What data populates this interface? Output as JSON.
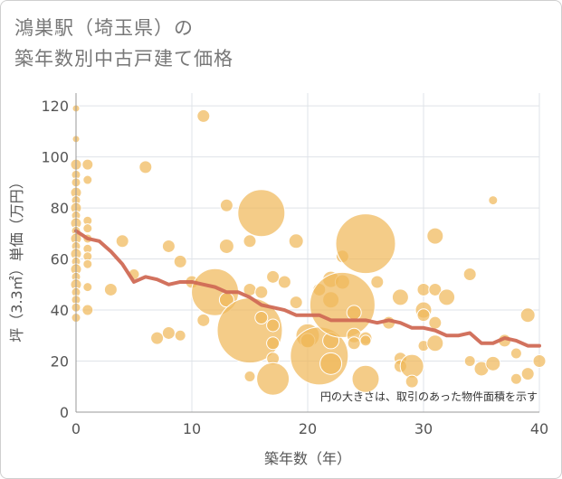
{
  "title_line1": "鴻巣駅（埼玉県）の",
  "title_line2": "築年数別中古戸建て価格",
  "chart_data": {
    "type": "scatter",
    "xlabel": "築年数（年）",
    "ylabel": "坪（3.3㎡）単価（万円）",
    "xlim": [
      0,
      40
    ],
    "ylim": [
      0,
      125
    ],
    "xticks": [
      0,
      10,
      20,
      30,
      40
    ],
    "yticks": [
      0,
      20,
      40,
      60,
      80,
      100,
      120
    ],
    "note": "円の大きさは、取引のあった物件面積を示す",
    "colors": {
      "bubble": "#f0b85a",
      "line": "#d06a55",
      "grid": "#dfe3e8",
      "axis": "#999999"
    },
    "bubbles": [
      {
        "x": 0,
        "y": 119,
        "r": 4
      },
      {
        "x": 0,
        "y": 107,
        "r": 4
      },
      {
        "x": 0,
        "y": 97,
        "r": 6
      },
      {
        "x": 0,
        "y": 93,
        "r": 5
      },
      {
        "x": 0,
        "y": 90,
        "r": 5
      },
      {
        "x": 0,
        "y": 86,
        "r": 6
      },
      {
        "x": 0,
        "y": 83,
        "r": 5
      },
      {
        "x": 0,
        "y": 80,
        "r": 6
      },
      {
        "x": 0,
        "y": 77,
        "r": 5
      },
      {
        "x": 0,
        "y": 74,
        "r": 6
      },
      {
        "x": 0,
        "y": 71,
        "r": 5
      },
      {
        "x": 0,
        "y": 68,
        "r": 6
      },
      {
        "x": 0,
        "y": 65,
        "r": 5
      },
      {
        "x": 0,
        "y": 62,
        "r": 6
      },
      {
        "x": 0,
        "y": 59,
        "r": 5
      },
      {
        "x": 0,
        "y": 56,
        "r": 6
      },
      {
        "x": 0,
        "y": 53,
        "r": 5
      },
      {
        "x": 0,
        "y": 50,
        "r": 6
      },
      {
        "x": 0,
        "y": 47,
        "r": 5
      },
      {
        "x": 0,
        "y": 44,
        "r": 5
      },
      {
        "x": 0,
        "y": 41,
        "r": 5
      },
      {
        "x": 0,
        "y": 37,
        "r": 5
      },
      {
        "x": 1,
        "y": 97,
        "r": 6
      },
      {
        "x": 1,
        "y": 91,
        "r": 5
      },
      {
        "x": 1,
        "y": 75,
        "r": 5
      },
      {
        "x": 1,
        "y": 72,
        "r": 5
      },
      {
        "x": 1,
        "y": 68,
        "r": 5
      },
      {
        "x": 1,
        "y": 64,
        "r": 5
      },
      {
        "x": 1,
        "y": 61,
        "r": 5
      },
      {
        "x": 1,
        "y": 58,
        "r": 5
      },
      {
        "x": 1,
        "y": 49,
        "r": 5
      },
      {
        "x": 1,
        "y": 40,
        "r": 6
      },
      {
        "x": 3,
        "y": 48,
        "r": 7
      },
      {
        "x": 4,
        "y": 67,
        "r": 7
      },
      {
        "x": 5,
        "y": 54,
        "r": 6
      },
      {
        "x": 6,
        "y": 96,
        "r": 7
      },
      {
        "x": 7,
        "y": 29,
        "r": 7
      },
      {
        "x": 8,
        "y": 65,
        "r": 7
      },
      {
        "x": 8,
        "y": 31,
        "r": 7
      },
      {
        "x": 9,
        "y": 59,
        "r": 7
      },
      {
        "x": 9,
        "y": 30,
        "r": 6
      },
      {
        "x": 10,
        "y": 51,
        "r": 7
      },
      {
        "x": 11,
        "y": 116,
        "r": 7
      },
      {
        "x": 11,
        "y": 36,
        "r": 7
      },
      {
        "x": 12,
        "y": 47,
        "r": 26
      },
      {
        "x": 13,
        "y": 81,
        "r": 7
      },
      {
        "x": 13,
        "y": 65,
        "r": 8
      },
      {
        "x": 13,
        "y": 44,
        "r": 8
      },
      {
        "x": 15,
        "y": 67,
        "r": 7
      },
      {
        "x": 15,
        "y": 48,
        "r": 7
      },
      {
        "x": 15,
        "y": 32,
        "r": 36
      },
      {
        "x": 15,
        "y": 14,
        "r": 6
      },
      {
        "x": 16,
        "y": 78,
        "r": 26
      },
      {
        "x": 16,
        "y": 47,
        "r": 7
      },
      {
        "x": 16,
        "y": 37,
        "r": 7
      },
      {
        "x": 17,
        "y": 53,
        "r": 7
      },
      {
        "x": 17,
        "y": 34,
        "r": 7
      },
      {
        "x": 17,
        "y": 27,
        "r": 7
      },
      {
        "x": 17,
        "y": 21,
        "r": 7
      },
      {
        "x": 17,
        "y": 13,
        "r": 18
      },
      {
        "x": 18,
        "y": 51,
        "r": 7
      },
      {
        "x": 19,
        "y": 67,
        "r": 8
      },
      {
        "x": 19,
        "y": 43,
        "r": 7
      },
      {
        "x": 20,
        "y": 30,
        "r": 13
      },
      {
        "x": 20,
        "y": 28,
        "r": 8
      },
      {
        "x": 21,
        "y": 48,
        "r": 7
      },
      {
        "x": 21,
        "y": 22,
        "r": 32
      },
      {
        "x": 22,
        "y": 52,
        "r": 9
      },
      {
        "x": 22,
        "y": 44,
        "r": 9
      },
      {
        "x": 22,
        "y": 28,
        "r": 9
      },
      {
        "x": 22,
        "y": 19,
        "r": 12
      },
      {
        "x": 23,
        "y": 61,
        "r": 7
      },
      {
        "x": 23,
        "y": 51,
        "r": 8
      },
      {
        "x": 23,
        "y": 42,
        "r": 36
      },
      {
        "x": 24,
        "y": 39,
        "r": 8
      },
      {
        "x": 24,
        "y": 30,
        "r": 8
      },
      {
        "x": 24,
        "y": 27,
        "r": 7
      },
      {
        "x": 25,
        "y": 66,
        "r": 33
      },
      {
        "x": 25,
        "y": 29,
        "r": 7
      },
      {
        "x": 25,
        "y": 28,
        "r": 6
      },
      {
        "x": 25,
        "y": 13,
        "r": 15
      },
      {
        "x": 26,
        "y": 51,
        "r": 7
      },
      {
        "x": 27,
        "y": 35,
        "r": 7
      },
      {
        "x": 28,
        "y": 45,
        "r": 9
      },
      {
        "x": 28,
        "y": 21,
        "r": 7
      },
      {
        "x": 28,
        "y": 18,
        "r": 7
      },
      {
        "x": 29,
        "y": 18,
        "r": 13
      },
      {
        "x": 29,
        "y": 12,
        "r": 7
      },
      {
        "x": 30,
        "y": 48,
        "r": 7
      },
      {
        "x": 30,
        "y": 40,
        "r": 9
      },
      {
        "x": 30,
        "y": 38,
        "r": 7
      },
      {
        "x": 30,
        "y": 26,
        "r": 6
      },
      {
        "x": 31,
        "y": 69,
        "r": 9
      },
      {
        "x": 31,
        "y": 48,
        "r": 7
      },
      {
        "x": 31,
        "y": 35,
        "r": 7
      },
      {
        "x": 31,
        "y": 27,
        "r": 9
      },
      {
        "x": 32,
        "y": 45,
        "r": 9
      },
      {
        "x": 34,
        "y": 54,
        "r": 7
      },
      {
        "x": 34,
        "y": 20,
        "r": 6
      },
      {
        "x": 35,
        "y": 17,
        "r": 8
      },
      {
        "x": 36,
        "y": 83,
        "r": 5
      },
      {
        "x": 36,
        "y": 19,
        "r": 8
      },
      {
        "x": 37,
        "y": 28,
        "r": 7
      },
      {
        "x": 38,
        "y": 23,
        "r": 6
      },
      {
        "x": 38,
        "y": 13,
        "r": 6
      },
      {
        "x": 39,
        "y": 38,
        "r": 8
      },
      {
        "x": 39,
        "y": 15,
        "r": 7
      },
      {
        "x": 40,
        "y": 20,
        "r": 7
      }
    ],
    "trend": {
      "x": [
        0,
        1,
        2,
        3,
        4,
        5,
        6,
        7,
        8,
        9,
        10,
        11,
        12,
        13,
        14,
        15,
        16,
        17,
        18,
        19,
        20,
        21,
        22,
        23,
        24,
        25,
        26,
        27,
        28,
        29,
        30,
        31,
        32,
        33,
        34,
        35,
        36,
        37,
        38,
        39,
        40
      ],
      "y": [
        71,
        68,
        67,
        63,
        58,
        51,
        53,
        52,
        50,
        51,
        51,
        50,
        49,
        47,
        47,
        45,
        42,
        41,
        40,
        38,
        38,
        38,
        36,
        36,
        36,
        36,
        35,
        36,
        35,
        33,
        33,
        32,
        30,
        30,
        31,
        27,
        27,
        29,
        28,
        26,
        26
      ]
    }
  }
}
